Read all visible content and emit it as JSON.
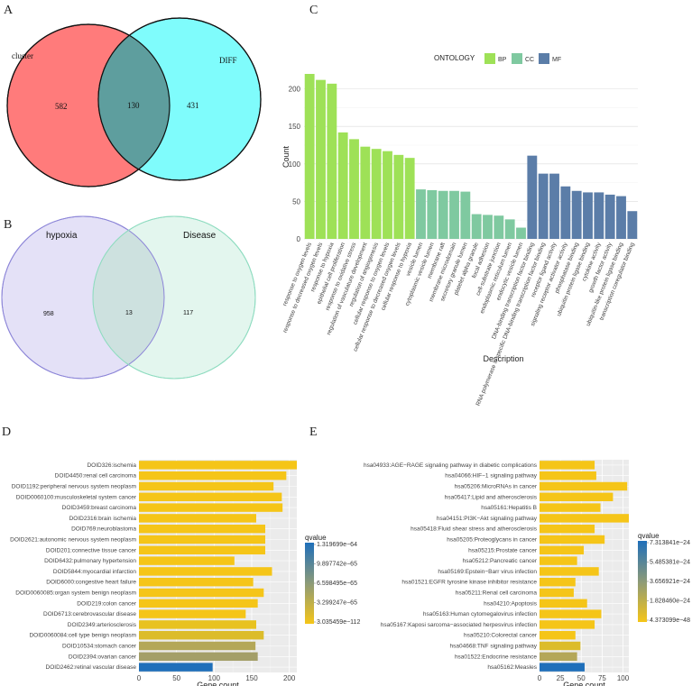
{
  "panels": {
    "A": {
      "letter": "A",
      "venn": {
        "left_label": "cluster",
        "right_label": "DIFF",
        "left_only": "582",
        "overlap": "130",
        "right_only": "431",
        "left_color": "#ff7b7b",
        "right_color": "#7ffcfc",
        "overlap_color": "#5e9e9e"
      }
    },
    "B": {
      "letter": "B",
      "venn": {
        "left_label": "hypoxia",
        "right_label": "Disease",
        "left_only": "958",
        "overlap": "13",
        "right_only": "117",
        "left_color": "#e4e1f7",
        "right_color": "#e3f6ee",
        "overlap_color": "#cde1df"
      }
    },
    "C": {
      "letter": "C"
    },
    "D": {
      "letter": "D"
    },
    "E": {
      "letter": "E"
    }
  },
  "chart_data": [
    {
      "id": "C",
      "type": "bar",
      "title": "",
      "xlabel": "Description",
      "ylabel": "Count",
      "ylim": [
        0,
        220
      ],
      "yticks": [
        0,
        50,
        100,
        150,
        200
      ],
      "legend": {
        "title": "ONTOLOGY",
        "entries": [
          {
            "name": "BP",
            "color": "#9ee157"
          },
          {
            "name": "CC",
            "color": "#7fc9a0"
          },
          {
            "name": "MF",
            "color": "#5b7da8"
          }
        ],
        "position": "top"
      },
      "categories": [
        "response to oxygen levels",
        "response to decreased oxygen levels",
        "response to hypoxia",
        "epithelial cell proliferation",
        "response to oxidative stress",
        "regulation of vasculature development",
        "regulation of angiogenesis",
        "cellular response to oxygen levels",
        "cellular response to decreased oxygen levels",
        "cellular response to hypoxia",
        "vesicle lumen",
        "cytoplasmic vesicle lumen",
        "membrane raft",
        "membrane microdomain",
        "secretory granule lumen",
        "platelet alpha granule",
        "focal adhesion",
        "cell-substrate junction",
        "endoplasmic reticulum lumen",
        "endocytic vesicle lumen",
        "DNA-binding transcription factor binding",
        "RNA polymerase II-specific DNA-binding transcription factor binding",
        "receptor ligand activity",
        "signaling receptor activator activity",
        "phosphatase binding",
        "ubiquitin protein ligase binding",
        "cytokine activity",
        "growth factor activity",
        "ubiquitin-like protein ligase binding",
        "transcription coregulator binding"
      ],
      "groups": [
        "BP",
        "BP",
        "BP",
        "BP",
        "BP",
        "BP",
        "BP",
        "BP",
        "BP",
        "BP",
        "CC",
        "CC",
        "CC",
        "CC",
        "CC",
        "CC",
        "CC",
        "CC",
        "CC",
        "CC",
        "MF",
        "MF",
        "MF",
        "MF",
        "MF",
        "MF",
        "MF",
        "MF",
        "MF",
        "MF"
      ],
      "values": [
        220,
        212,
        207,
        142,
        133,
        123,
        120,
        117,
        112,
        108,
        66,
        65,
        64,
        64,
        63,
        33,
        32,
        31,
        26,
        15,
        111,
        87,
        87,
        70,
        64,
        62,
        62,
        59,
        57,
        37
      ]
    },
    {
      "id": "D",
      "type": "bar",
      "orientation": "horizontal",
      "xlabel": "Gene count",
      "ylabel": "",
      "xlim": [
        0,
        210
      ],
      "xticks": [
        0,
        50,
        100,
        150,
        200
      ],
      "categories": [
        "DOID326:ischemia",
        "DOID4450:renal cell carcinoma",
        "DOID1192:peripheral nervous system neoplasm",
        "DOID0060100:musculoskeletal system cancer",
        "DOID3459:breast carcinoma",
        "DOID2316:brain ischemia",
        "DOID769:neuroblastoma",
        "DOID2621:autonomic nervous system neoplasm",
        "DOID201:connective tissue cancer",
        "DOID6432:pulmonary hypertension",
        "DOID5844:myocardial infarction",
        "DOID6000:congestive heart failure",
        "DOID0060085:organ system benign neoplasm",
        "DOID219:colon cancer",
        "DOID6713:cerebrovascular disease",
        "DOID2349:arteriosclerosis",
        "DOID0060084:cell type benign neoplasm",
        "DOID10534:stomach cancer",
        "DOID2394:ovarian cancer",
        "DOID2462:retinal vascular disease"
      ],
      "values": [
        210,
        196,
        179,
        190,
        191,
        156,
        168,
        168,
        168,
        127,
        177,
        152,
        166,
        158,
        142,
        156,
        166,
        155,
        158,
        98
      ],
      "colors": [
        "#f5c518",
        "#f5c518",
        "#f5c518",
        "#f5c518",
        "#f5c518",
        "#f5c518",
        "#f5c518",
        "#f5c518",
        "#f5c518",
        "#f5c518",
        "#f5c518",
        "#f5c518",
        "#f5c518",
        "#f5c518",
        "#f5c518",
        "#e8c220",
        "#dcbc2a",
        "#b4a758",
        "#a49f68",
        "#1f6fba"
      ],
      "legend": {
        "title": "qvalue",
        "labels": [
          "1.319699e−64",
          "9.897742e−65",
          "6.598495e−65",
          "3.299247e−65",
          "3.035459e−112"
        ],
        "color_high": "#1f6fba",
        "color_low": "#f5c518",
        "position": "right"
      }
    },
    {
      "id": "E",
      "type": "bar",
      "orientation": "horizontal",
      "xlabel": "Gene count",
      "ylabel": "",
      "xlim": [
        0,
        107
      ],
      "xticks": [
        0,
        25,
        50,
        75,
        100
      ],
      "categories": [
        "hsa04933:AGE−RAGE signaling pathway in diabetic complications",
        "hsa04066:HIF−1 signaling pathway",
        "hsa05206:MicroRNAs in cancer",
        "hsa05417:Lipid and atherosclerosis",
        "hsa05161:Hepatitis B",
        "hsa04151:PI3K−Akt signaling pathway",
        "hsa05418:Fluid shear stress and atherosclerosis",
        "hsa05205:Proteoglycans in cancer",
        "hsa05215:Prostate cancer",
        "hsa05212:Pancreatic cancer",
        "hsa05169:Epstein−Barr virus infection",
        "hsa01521:EGFR tyrosine kinase inhibitor resistance",
        "hsa05211:Renal cell carcinoma",
        "hsa04210:Apoptosis",
        "hsa05163:Human cytomegalovirus infection",
        "hsa05167:Kaposi sarcoma−associated herpesvirus infection",
        "hsa05210:Colorectal cancer",
        "hsa04668:TNF signaling pathway",
        "hsa01522:Endocrine resistance",
        "hsa05162:Measles"
      ],
      "values": [
        66,
        68,
        105,
        88,
        73,
        107,
        66,
        78,
        53,
        45,
        71,
        43,
        41,
        57,
        74,
        66,
        43,
        49,
        45,
        54
      ],
      "colors": [
        "#f5c518",
        "#f5c518",
        "#f5c518",
        "#f5c518",
        "#f5c518",
        "#f5c518",
        "#f5c518",
        "#f5c518",
        "#f5c518",
        "#f5c518",
        "#f5c518",
        "#f5c518",
        "#f5c518",
        "#f5c518",
        "#f5c518",
        "#f5c518",
        "#f5c518",
        "#dcbc2a",
        "#b4a758",
        "#1f6fba"
      ],
      "legend": {
        "title": "qvalue",
        "labels": [
          "7.313841e−24",
          "5.485381e−24",
          "3.656921e−24",
          "1.828460e−24",
          "4.373099e−48"
        ],
        "color_high": "#1f6fba",
        "color_low": "#f5c518",
        "position": "right"
      }
    }
  ]
}
